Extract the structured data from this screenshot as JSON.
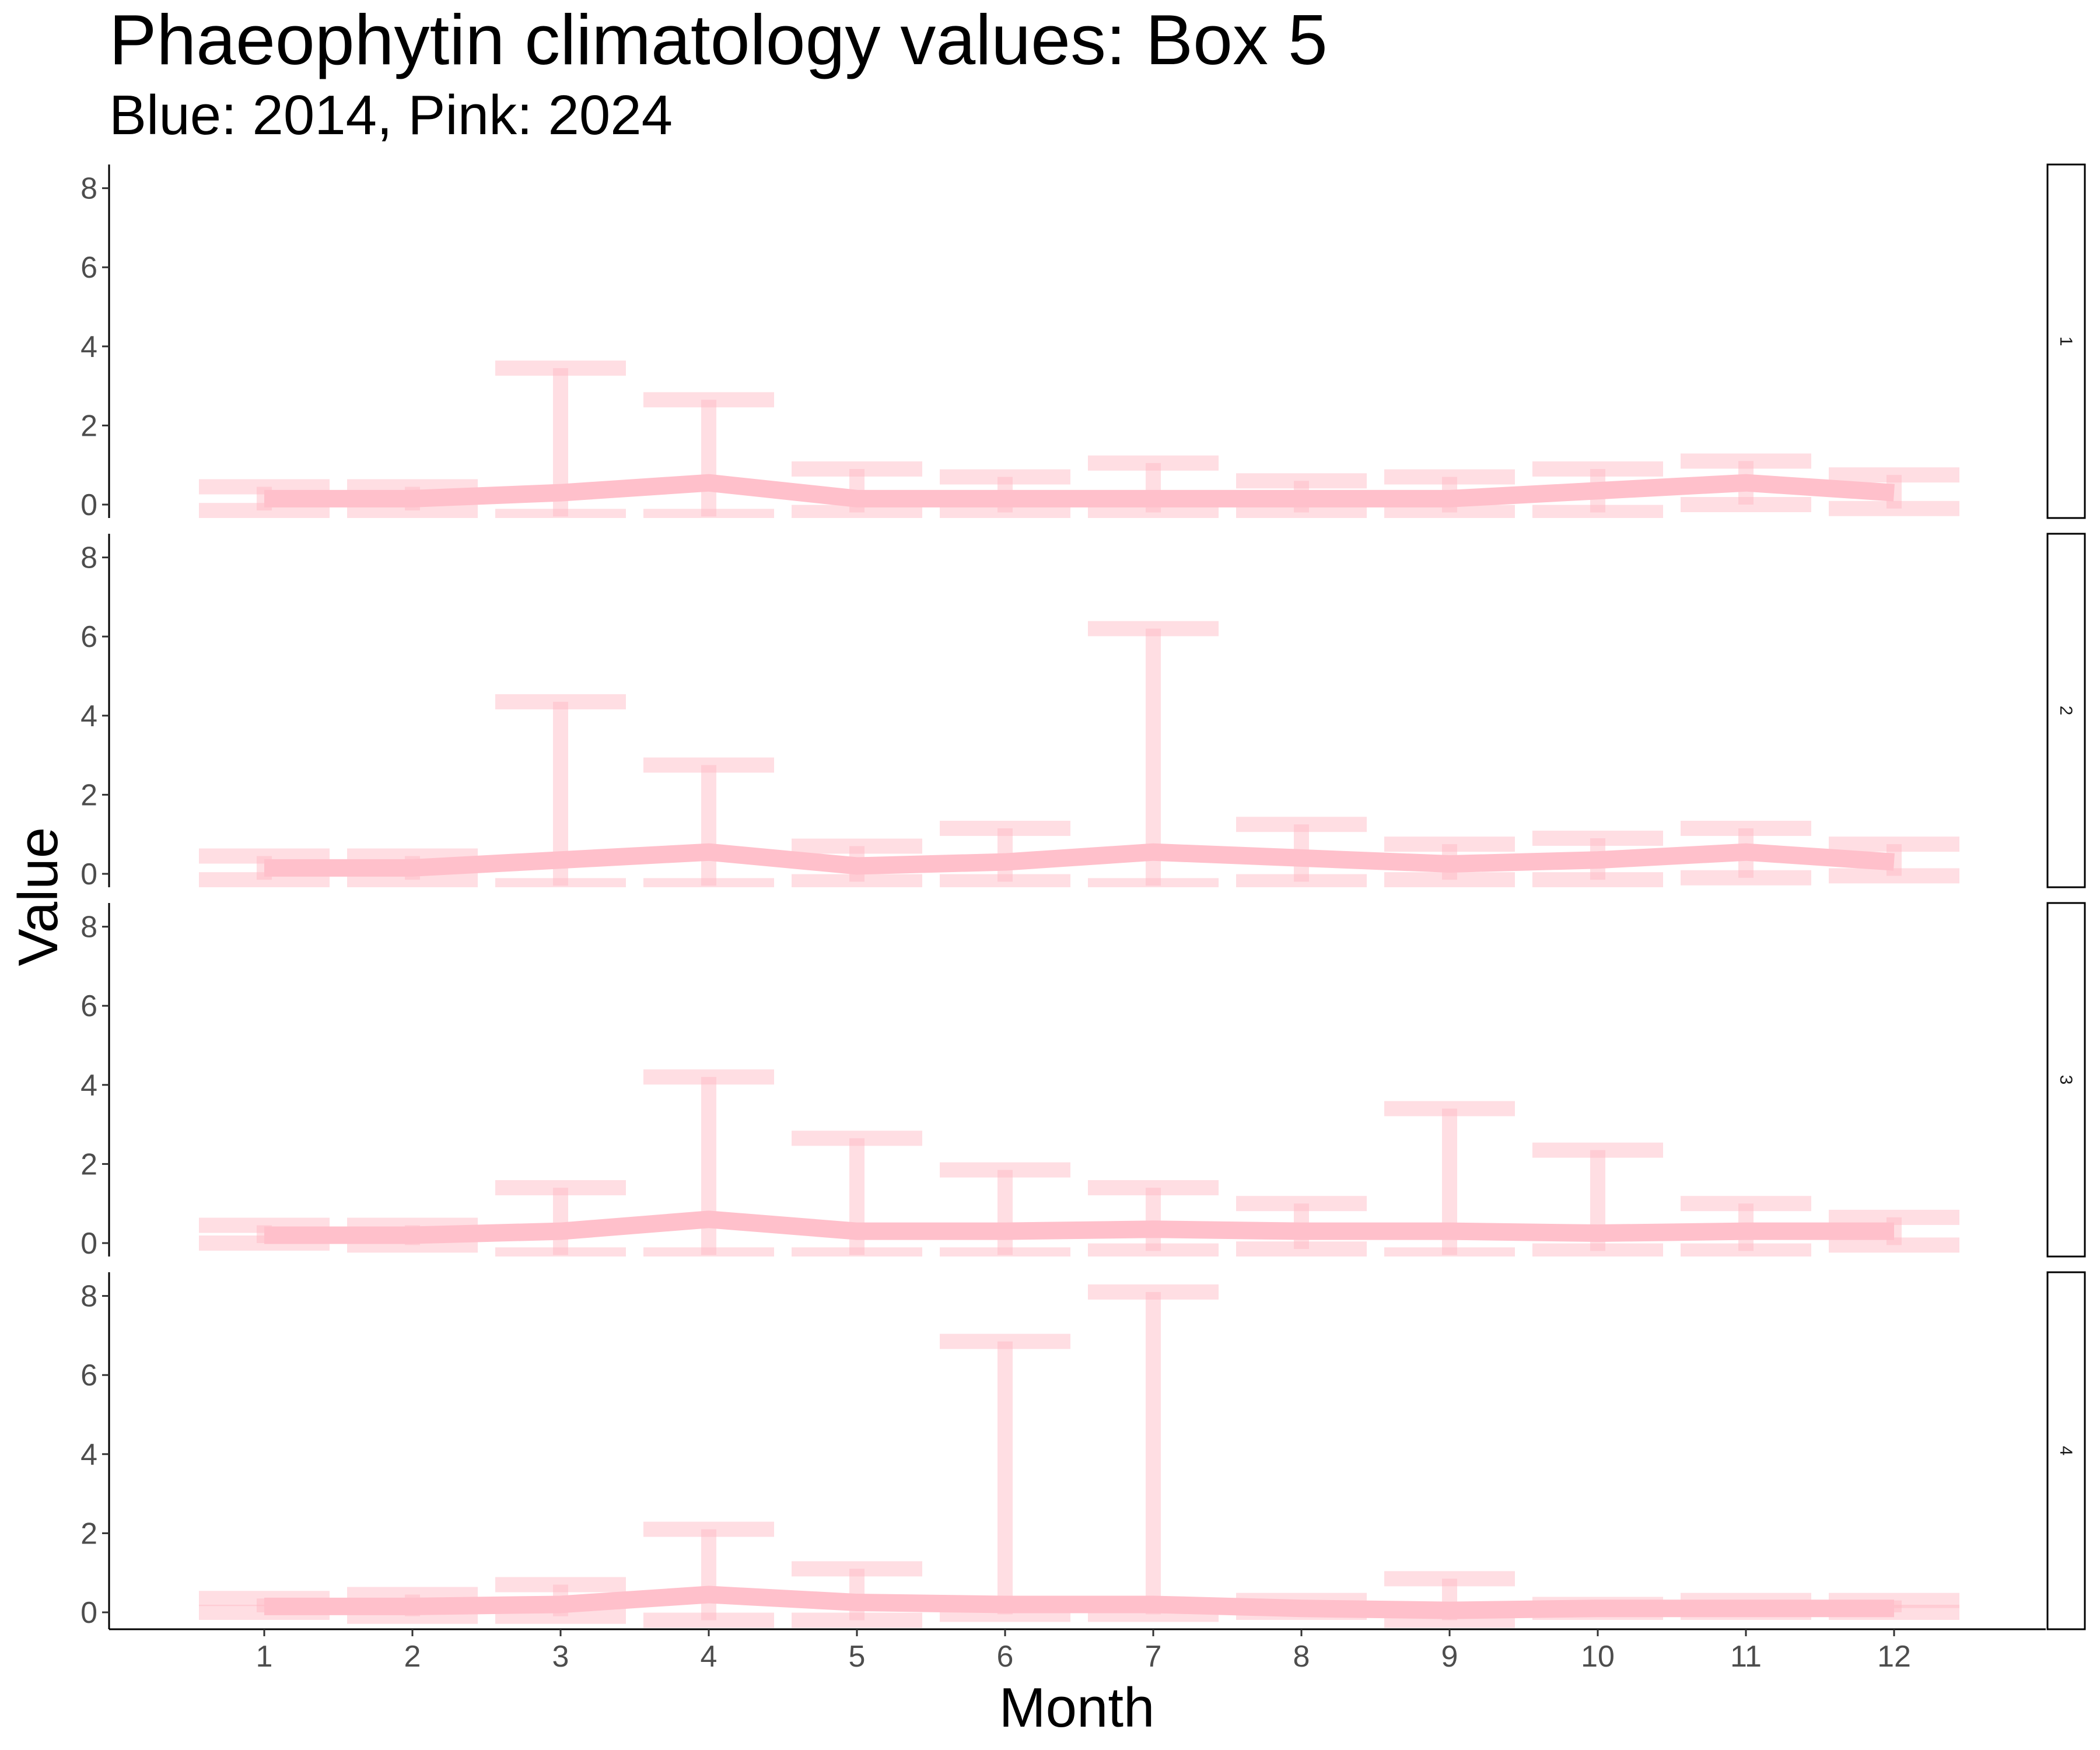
{
  "chart_data": {
    "type": "line",
    "title": "Phaeophytin climatology values: Box 5",
    "subtitle": "Blue: 2014, Pink: 2024",
    "xlabel": "Month",
    "ylabel": "Value",
    "ylim": [
      0,
      8
    ],
    "yticks": [
      0,
      2,
      4,
      6,
      8
    ],
    "categories": [
      "1",
      "2",
      "3",
      "4",
      "5",
      "6",
      "7",
      "8",
      "9",
      "10",
      "11",
      "12"
    ],
    "line_color": "#FFC0CB",
    "errorbar_color": "#FFB6C1",
    "legend": "none",
    "grid": false,
    "panels": [
      {
        "strip": "1",
        "mean": [
          0.15,
          0.15,
          0.3,
          0.55,
          0.15,
          0.15,
          0.15,
          0.15,
          0.15,
          0.35,
          0.55,
          0.3
        ],
        "upper": [
          0.45,
          0.45,
          3.45,
          2.65,
          0.9,
          0.7,
          1.05,
          0.6,
          0.7,
          0.9,
          1.1,
          0.75
        ],
        "lower": [
          -0.15,
          -0.15,
          -0.3,
          -0.3,
          -0.2,
          -0.2,
          -0.2,
          -0.2,
          -0.2,
          -0.2,
          0.0,
          -0.1
        ]
      },
      {
        "strip": "2",
        "mean": [
          0.15,
          0.15,
          0.35,
          0.55,
          0.2,
          0.3,
          0.55,
          0.4,
          0.25,
          0.35,
          0.55,
          0.3
        ],
        "upper": [
          0.45,
          0.45,
          4.35,
          2.75,
          0.7,
          1.15,
          6.2,
          1.25,
          0.75,
          0.9,
          1.15,
          0.75
        ],
        "lower": [
          -0.15,
          -0.15,
          -0.3,
          -0.3,
          -0.2,
          -0.2,
          -0.3,
          -0.2,
          -0.15,
          -0.15,
          -0.1,
          -0.05
        ]
      },
      {
        "strip": "3",
        "mean": [
          0.2,
          0.2,
          0.3,
          0.6,
          0.3,
          0.3,
          0.35,
          0.3,
          0.3,
          0.25,
          0.3,
          0.3
        ],
        "upper": [
          0.45,
          0.45,
          1.4,
          4.2,
          2.65,
          1.85,
          1.4,
          1.0,
          3.4,
          2.35,
          1.0,
          0.65
        ],
        "lower": [
          0.0,
          -0.05,
          -0.3,
          -0.3,
          -0.3,
          -0.3,
          -0.2,
          -0.15,
          -0.3,
          -0.2,
          -0.2,
          -0.05
        ]
      },
      {
        "strip": "4",
        "mean": [
          0.15,
          0.15,
          0.2,
          0.45,
          0.25,
          0.2,
          0.2,
          0.1,
          0.05,
          0.1,
          0.1,
          0.1
        ],
        "upper": [
          0.35,
          0.45,
          0.7,
          2.1,
          1.1,
          6.85,
          8.1,
          0.3,
          0.85,
          0.2,
          0.3,
          0.3
        ],
        "lower": [
          0.0,
          -0.1,
          -0.1,
          -0.2,
          -0.2,
          -0.05,
          -0.05,
          0.0,
          -0.2,
          0.0,
          0.0,
          0.0
        ]
      }
    ]
  }
}
